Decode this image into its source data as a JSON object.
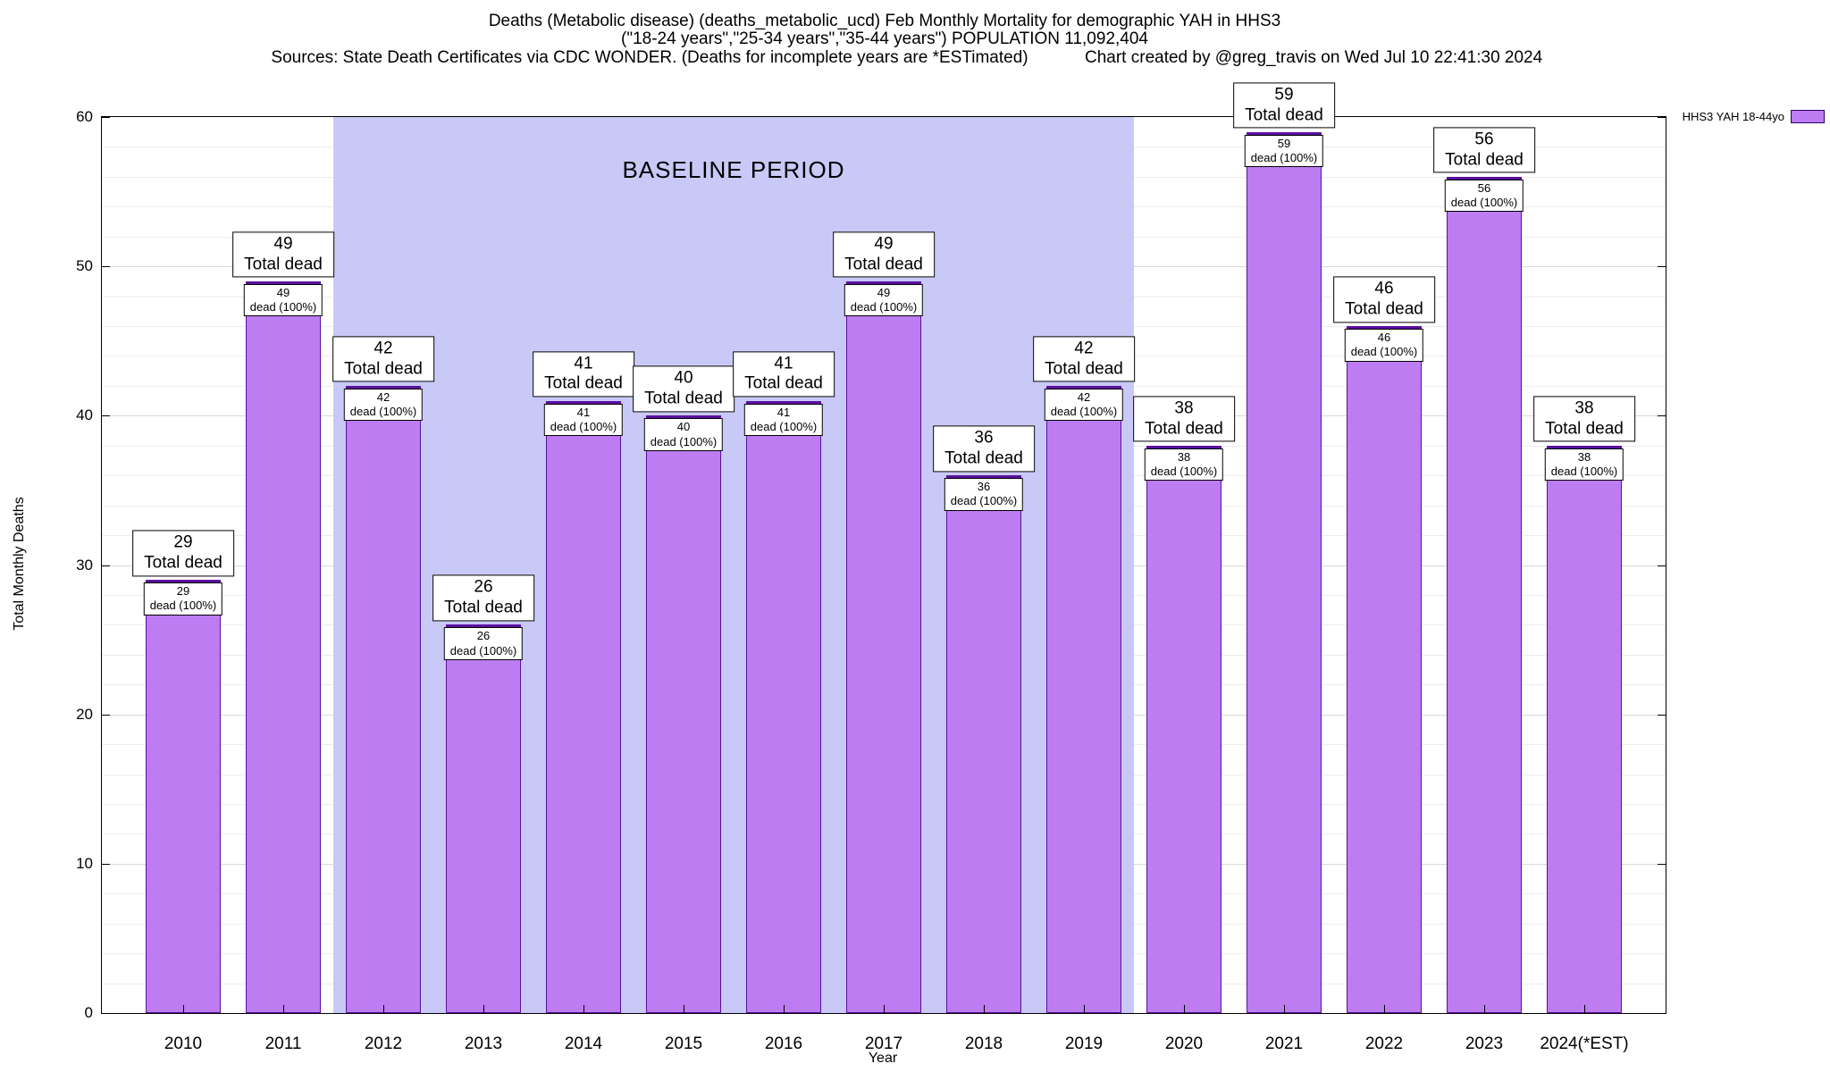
{
  "chart_data": {
    "type": "bar",
    "title": "Deaths (Metabolic disease) (deaths_metabolic_ucd) Feb Monthly Mortality for demographic YAH in HHS3",
    "subtitle": "(\"18-24 years\",\"25-34 years\",\"35-44 years\") POPULATION 11,092,404",
    "source_note": "Sources: State Death Certificates via CDC WONDER. (Deaths for incomplete years are *ESTimated)",
    "credit": "Chart created by @greg_travis on Wed Jul 10 22:41:30 2024",
    "xlabel": "Year",
    "ylabel": "Total Monthly Deaths",
    "ylim": [
      0,
      60
    ],
    "yticks": [
      0,
      10,
      20,
      30,
      40,
      50,
      60
    ],
    "grid": "horizontal",
    "grid_step": 2,
    "legend": {
      "label": "HHS3 YAH 18-44yo",
      "position": "top-right-outside"
    },
    "categories": [
      "2010",
      "2011",
      "2012",
      "2013",
      "2014",
      "2015",
      "2016",
      "2017",
      "2018",
      "2019",
      "2020",
      "2021",
      "2022",
      "2023",
      "2024(*EST)"
    ],
    "series": [
      {
        "name": "HHS3 YAH 18-44yo",
        "values": [
          29,
          49,
          42,
          26,
          41,
          40,
          41,
          49,
          36,
          42,
          38,
          59,
          46,
          56,
          38
        ]
      }
    ],
    "bar_labels": {
      "total_suffix": "Total dead",
      "pct_suffix": "dead (100%)"
    },
    "baseline_period": {
      "label": "BASELINE PERIOD",
      "start_category": "2012",
      "end_category": "2019",
      "fill_color": "#c9c9f8"
    },
    "colors": {
      "bar_fill": "#bd7cf2",
      "bar_border": "#5a10a0",
      "grid_minor": "#ececec",
      "grid_major": "#d9d9d9",
      "background": "#ffffff"
    }
  }
}
